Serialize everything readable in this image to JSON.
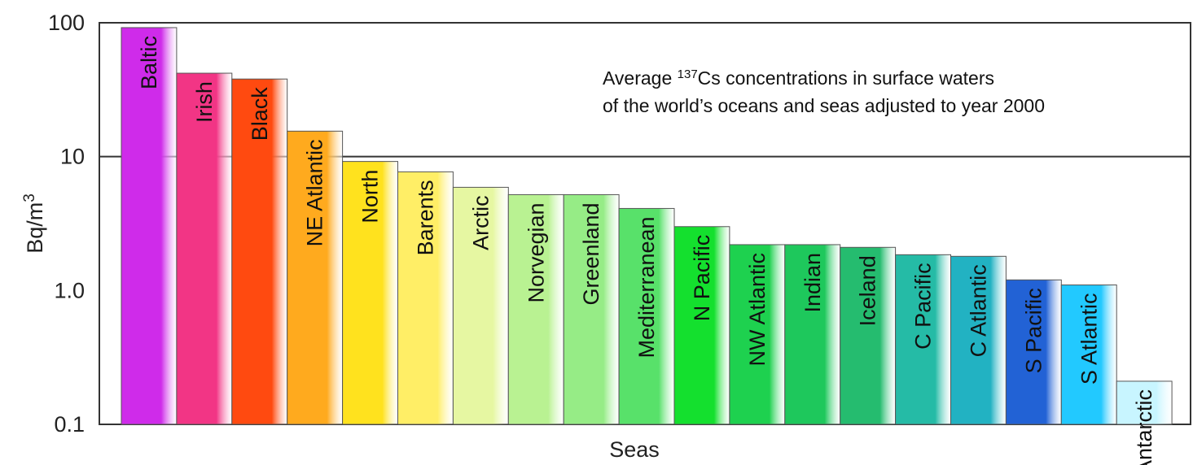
{
  "chart_data": {
    "type": "bar",
    "title": "",
    "xlabel": "Seas",
    "ylabel_prefix": "Bq/m",
    "ylabel_sup": "3",
    "y_scale": "log",
    "ylim": [
      0.1,
      100
    ],
    "yticks": [
      {
        "value": 0.1,
        "label": "0.1"
      },
      {
        "value": 1,
        "label": "1.0"
      },
      {
        "value": 10,
        "label": "10"
      },
      {
        "value": 100,
        "label": "100"
      }
    ],
    "gridlines": [
      10,
      100
    ],
    "annotation": {
      "line1_prefix": "Average ",
      "line1_sup": "137",
      "line1_suffix": "Cs concentrations in surface waters",
      "line2": "of the world’s oceans and seas adjusted to year 2000"
    },
    "categories": [
      "Baltic",
      "Irish",
      "Black",
      "NE Atlantic",
      "North",
      "Barents",
      "Arctic",
      "Norvegian",
      "Greenland",
      "Mediterranean",
      "N Pacific",
      "NW Atlantic",
      "Indian",
      "Iceland",
      "C Pacific",
      "C Atlantic",
      "S Pacific",
      "S Atlantic",
      "Antarctic"
    ],
    "values": [
      92,
      42,
      38,
      15.5,
      9.2,
      7.7,
      5.9,
      5.2,
      5.2,
      4.1,
      3.0,
      2.2,
      2.2,
      2.1,
      1.85,
      1.8,
      1.2,
      1.1,
      0.21
    ],
    "colors": [
      "#cf2bea",
      "#f23585",
      "#ff4a10",
      "#ffaa1e",
      "#ffe21e",
      "#ffee66",
      "#e6f7a2",
      "#b9f292",
      "#96ec86",
      "#58e16a",
      "#14e02e",
      "#1ed14f",
      "#1ec85c",
      "#25bc6f",
      "#25bba6",
      "#22b2c2",
      "#2262d5",
      "#22c9ff",
      "#c8f5ff"
    ]
  }
}
